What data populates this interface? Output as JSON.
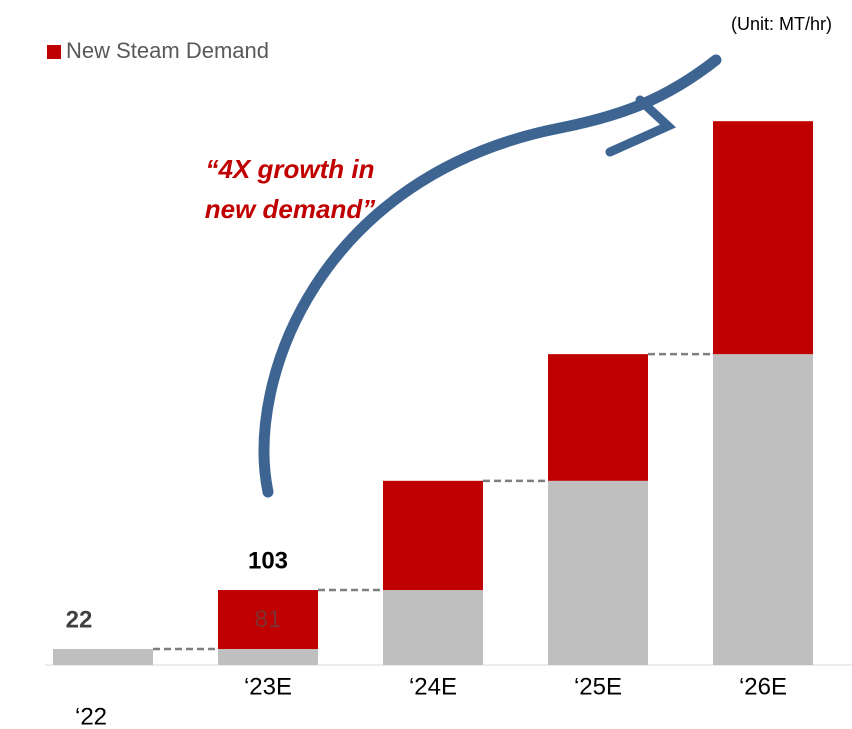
{
  "chart_data": {
    "type": "bar",
    "stacked": true,
    "unit_note": "(Unit: MT/hr)",
    "annotation": [
      "“4X growth in",
      "new demand”"
    ],
    "categories": [
      "‘22",
      "‘23E",
      "‘24E",
      "‘25E",
      "‘26E"
    ],
    "series": [
      {
        "color": "#bfbfbf",
        "values": [
          22,
          22,
          103,
          253,
          427
        ]
      },
      {
        "name": "New Steam Demand",
        "color": "#c00000",
        "values": [
          0,
          81,
          150,
          174,
          320
        ]
      }
    ],
    "totals": [
      22,
      103,
      null,
      null,
      null
    ],
    "ylim": [
      0,
      750
    ]
  }
}
